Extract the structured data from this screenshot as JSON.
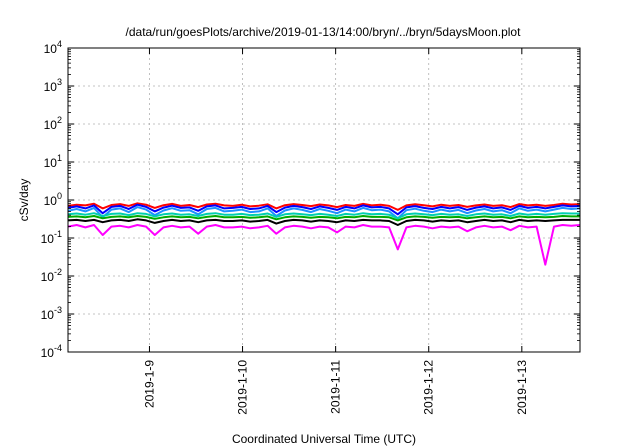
{
  "chart_data": {
    "type": "line",
    "title": "/data/run/goesPlots/archive/2019-01-13/14:00/bryn/../bryn/5daysMoon.plot",
    "xlabel": "Coordinated Universal Time (UTC)",
    "ylabel": "cSv/day",
    "yscale": "log",
    "ylim": [
      0.0001,
      10000
    ],
    "ytick_exponents": [
      "4",
      "3",
      "2",
      "1",
      "0",
      "-1",
      "-2",
      "-3",
      "-4"
    ],
    "xlim": [
      "2019-01-08T03:00",
      "2019-01-13T15:00"
    ],
    "xtick_labels": [
      "2019-1-9",
      "2019-1-10",
      "2019-1-11",
      "2019-1-12",
      "2019-1-13"
    ],
    "grid": true,
    "legend": "none",
    "series": [
      {
        "color": "#ff0000",
        "values": [
          0.7,
          0.75,
          0.72,
          0.8,
          0.6,
          0.74,
          0.78,
          0.7,
          0.82,
          0.75,
          0.62,
          0.73,
          0.79,
          0.7,
          0.74,
          0.65,
          0.76,
          0.8,
          0.72,
          0.7,
          0.75,
          0.68,
          0.71,
          0.77,
          0.6,
          0.73,
          0.78,
          0.74,
          0.69,
          0.76,
          0.72,
          0.65,
          0.74,
          0.7,
          0.79,
          0.72,
          0.75,
          0.7,
          0.55,
          0.72,
          0.77,
          0.73,
          0.68,
          0.75,
          0.7,
          0.74,
          0.66,
          0.72,
          0.76,
          0.7,
          0.73,
          0.65,
          0.78,
          0.72,
          0.75,
          0.7,
          0.74,
          0.8,
          0.76,
          0.78
        ]
      },
      {
        "color": "#0000ff",
        "values": [
          0.62,
          0.68,
          0.6,
          0.72,
          0.45,
          0.66,
          0.7,
          0.58,
          0.75,
          0.66,
          0.5,
          0.63,
          0.71,
          0.62,
          0.64,
          0.52,
          0.68,
          0.72,
          0.6,
          0.62,
          0.66,
          0.58,
          0.6,
          0.7,
          0.48,
          0.63,
          0.7,
          0.65,
          0.58,
          0.68,
          0.62,
          0.55,
          0.66,
          0.6,
          0.72,
          0.64,
          0.66,
          0.6,
          0.42,
          0.64,
          0.69,
          0.62,
          0.58,
          0.66,
          0.6,
          0.65,
          0.55,
          0.63,
          0.68,
          0.6,
          0.64,
          0.55,
          0.7,
          0.62,
          0.66,
          0.6,
          0.66,
          0.72,
          0.68,
          0.7
        ]
      },
      {
        "color": "#1e90ff",
        "values": [
          0.52,
          0.58,
          0.5,
          0.62,
          0.35,
          0.56,
          0.6,
          0.48,
          0.65,
          0.56,
          0.4,
          0.53,
          0.61,
          0.52,
          0.54,
          0.42,
          0.58,
          0.62,
          0.5,
          0.52,
          0.56,
          0.48,
          0.5,
          0.6,
          0.38,
          0.53,
          0.6,
          0.55,
          0.48,
          0.58,
          0.52,
          0.45,
          0.56,
          0.5,
          0.62,
          0.54,
          0.56,
          0.5,
          0.33,
          0.54,
          0.59,
          0.52,
          0.48,
          0.56,
          0.5,
          0.55,
          0.45,
          0.53,
          0.58,
          0.5,
          0.54,
          0.45,
          0.6,
          0.52,
          0.56,
          0.5,
          0.56,
          0.62,
          0.58,
          0.6
        ]
      },
      {
        "color": "#00d0b0",
        "values": [
          0.42,
          0.44,
          0.41,
          0.45,
          0.38,
          0.43,
          0.44,
          0.4,
          0.45,
          0.43,
          0.37,
          0.42,
          0.44,
          0.41,
          0.42,
          0.38,
          0.43,
          0.45,
          0.41,
          0.41,
          0.43,
          0.4,
          0.41,
          0.44,
          0.36,
          0.42,
          0.44,
          0.42,
          0.4,
          0.43,
          0.41,
          0.38,
          0.43,
          0.41,
          0.45,
          0.42,
          0.43,
          0.41,
          0.33,
          0.42,
          0.44,
          0.42,
          0.4,
          0.43,
          0.41,
          0.42,
          0.38,
          0.42,
          0.44,
          0.41,
          0.42,
          0.38,
          0.44,
          0.41,
          0.43,
          0.41,
          0.43,
          0.45,
          0.44,
          0.44
        ]
      },
      {
        "color": "#00aa00",
        "values": [
          0.36,
          0.37,
          0.35,
          0.38,
          0.33,
          0.36,
          0.37,
          0.35,
          0.38,
          0.36,
          0.32,
          0.35,
          0.37,
          0.35,
          0.36,
          0.33,
          0.36,
          0.38,
          0.35,
          0.35,
          0.36,
          0.34,
          0.35,
          0.37,
          0.31,
          0.35,
          0.37,
          0.36,
          0.34,
          0.36,
          0.35,
          0.33,
          0.36,
          0.35,
          0.38,
          0.36,
          0.36,
          0.35,
          0.29,
          0.35,
          0.37,
          0.36,
          0.34,
          0.36,
          0.35,
          0.36,
          0.33,
          0.35,
          0.37,
          0.35,
          0.36,
          0.33,
          0.37,
          0.35,
          0.36,
          0.35,
          0.36,
          0.38,
          0.37,
          0.37
        ]
      },
      {
        "color": "#000000",
        "values": [
          0.29,
          0.3,
          0.28,
          0.3,
          0.26,
          0.29,
          0.3,
          0.28,
          0.31,
          0.29,
          0.25,
          0.28,
          0.3,
          0.28,
          0.29,
          0.26,
          0.29,
          0.3,
          0.28,
          0.28,
          0.29,
          0.27,
          0.28,
          0.3,
          0.24,
          0.28,
          0.3,
          0.29,
          0.27,
          0.29,
          0.28,
          0.26,
          0.29,
          0.28,
          0.3,
          0.29,
          0.29,
          0.28,
          0.22,
          0.28,
          0.3,
          0.29,
          0.27,
          0.29,
          0.28,
          0.29,
          0.26,
          0.28,
          0.3,
          0.28,
          0.29,
          0.26,
          0.3,
          0.28,
          0.29,
          0.28,
          0.29,
          0.3,
          0.3,
          0.3
        ]
      },
      {
        "color": "#ff00ff",
        "values": [
          0.2,
          0.22,
          0.19,
          0.22,
          0.12,
          0.2,
          0.21,
          0.19,
          0.22,
          0.2,
          0.12,
          0.19,
          0.21,
          0.19,
          0.2,
          0.13,
          0.2,
          0.22,
          0.19,
          0.19,
          0.2,
          0.18,
          0.19,
          0.21,
          0.13,
          0.19,
          0.21,
          0.2,
          0.18,
          0.2,
          0.19,
          0.14,
          0.2,
          0.19,
          0.22,
          0.2,
          0.2,
          0.19,
          0.05,
          0.19,
          0.21,
          0.2,
          0.18,
          0.2,
          0.19,
          0.2,
          0.15,
          0.19,
          0.21,
          0.19,
          0.2,
          0.16,
          0.21,
          0.19,
          0.2,
          0.02,
          0.2,
          0.22,
          0.21,
          0.22
        ]
      }
    ]
  }
}
